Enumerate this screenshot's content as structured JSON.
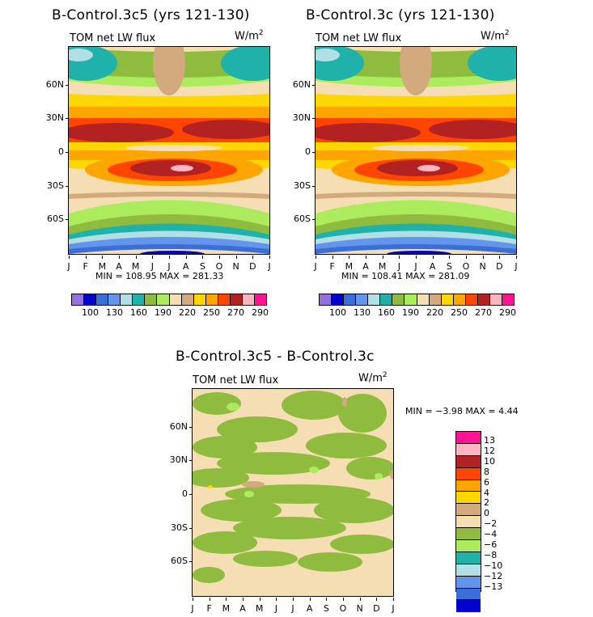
{
  "chart_data": [
    {
      "type": "heatmap",
      "title": "B-Control.3c5 (yrs 121-130)",
      "variable": "TOM net LW flux",
      "units_base": "W/m",
      "units_exp": "2",
      "x_ticks": [
        "J",
        "F",
        "M",
        "A",
        "M",
        "J",
        "J",
        "A",
        "S",
        "O",
        "N",
        "D",
        "J"
      ],
      "y_ticks": [
        "60N",
        "30N",
        "0",
        "30S",
        "60S"
      ],
      "min_label": "MIN = 108.95 MAX = 281.33",
      "min": 108.95,
      "max": 281.33,
      "legend_labels": [
        "100",
        "130",
        "160",
        "190",
        "220",
        "250",
        "270",
        "290"
      ]
    },
    {
      "type": "heatmap",
      "title": "B-Control.3c (yrs 121-130)",
      "variable": "TOM net LW flux",
      "units_base": "W/m",
      "units_exp": "2",
      "x_ticks": [
        "J",
        "F",
        "M",
        "A",
        "M",
        "J",
        "J",
        "A",
        "S",
        "O",
        "N",
        "D",
        "J"
      ],
      "y_ticks": [
        "60N",
        "30N",
        "0",
        "30S",
        "60S"
      ],
      "min_label": "MIN = 108.41 MAX = 281.09",
      "min": 108.41,
      "max": 281.09,
      "legend_labels": [
        "100",
        "130",
        "160",
        "190",
        "220",
        "250",
        "270",
        "290"
      ]
    },
    {
      "type": "heatmap",
      "title": "B-Control.3c5 - B-Control.3c",
      "variable": "TOM net LW flux",
      "units_base": "W/m",
      "units_exp": "2",
      "x_ticks": [
        "J",
        "F",
        "M",
        "A",
        "M",
        "J",
        "J",
        "A",
        "S",
        "O",
        "N",
        "D",
        "J"
      ],
      "y_ticks": [
        "60N",
        "30N",
        "0",
        "30S",
        "60S"
      ],
      "min_label": "MIN = -3.98 MAX = 4.44",
      "min": -3.98,
      "max": 4.44,
      "legend_labels": [
        "13",
        "12",
        "10",
        "8",
        "6",
        "4",
        "2",
        "0",
        "-2",
        "-4",
        "-6",
        "-8",
        "-10",
        "-12",
        "-13"
      ]
    }
  ],
  "colors": {
    "abs_scale": [
      "#9370DB",
      "#0000CD",
      "#3A6FD8",
      "#6495ED",
      "#B0E0E6",
      "#20B2AA",
      "#8FBC3F",
      "#ADEB5E",
      "#F5DEB3",
      "#D2AA7D",
      "#FFD700",
      "#FFA500",
      "#FF4500",
      "#B22222",
      "#FFB6C1",
      "#FF1493"
    ],
    "diff_scale": [
      "#FF1493",
      "#FFB6C1",
      "#B22222",
      "#FF4500",
      "#FFA500",
      "#FFD700",
      "#D2AA7D",
      "#F5DEB3",
      "#8FBC3F",
      "#ADEB5E",
      "#20B2AA",
      "#B0E0E6",
      "#6495ED",
      "#3A6FD8",
      "#0000CD",
      "#9370DB"
    ]
  }
}
